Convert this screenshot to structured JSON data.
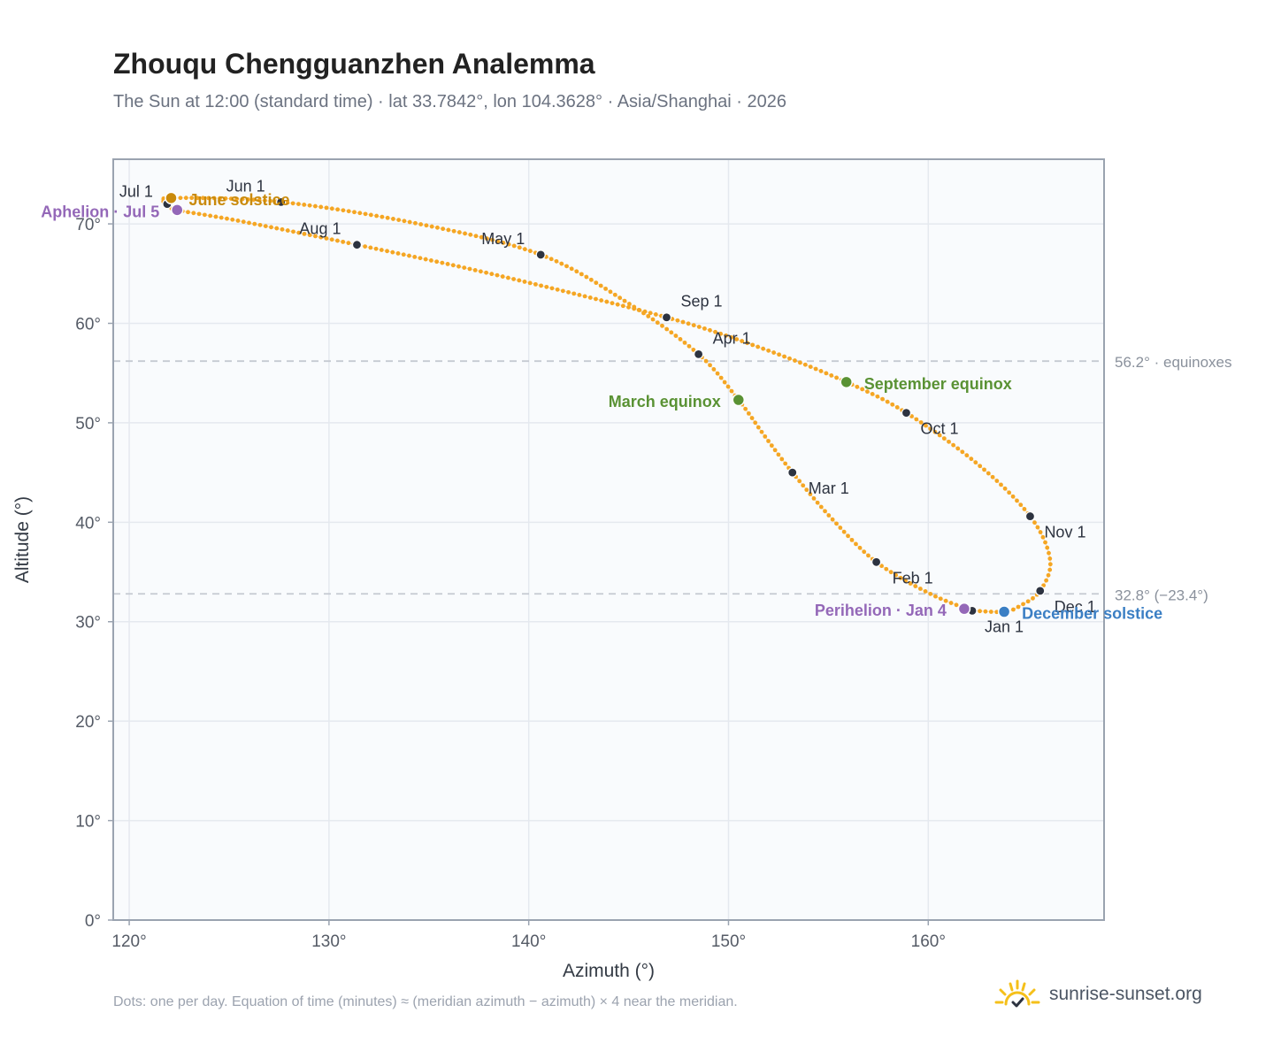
{
  "header": {
    "title": "Zhouqu Chengguanzhen Analemma",
    "subtitle": "The Sun at 12:00 (standard time) · lat 33.7842°, lon 104.3628° · Asia/Shanghai · 2026"
  },
  "footer": {
    "note": "Dots: one per day. Equation of time (minutes) ≈ (meridian azimuth − azimuth) × 4 near the meridian.",
    "brand": "sunrise-sunset.org",
    "brand_icon": "sun-check-icon"
  },
  "colors": {
    "curve": "#f5a623",
    "month_dot": "#2d3340",
    "june": "#c98a0c",
    "december": "#3b7fc4",
    "equinox": "#5a9234",
    "apsis": "#9468b8",
    "grid": "#e5e9ef",
    "plot_bg": "#f9fbfd",
    "frame": "#9aa3b0",
    "refline": "#c5cad2"
  },
  "chart_data": {
    "type": "scatter",
    "xlabel": "Azimuth (°)",
    "ylabel": "Altitude (°)",
    "xlim": [
      119.2,
      168.8
    ],
    "ylim": [
      0,
      76.5
    ],
    "xticks": [
      120,
      130,
      140,
      150,
      160
    ],
    "xtick_labels": [
      "120°",
      "130°",
      "140°",
      "150°",
      "160°"
    ],
    "yticks": [
      0,
      10,
      20,
      30,
      40,
      50,
      60,
      70
    ],
    "ytick_labels": [
      "0°",
      "10°",
      "20°",
      "30°",
      "40°",
      "50°",
      "60°",
      "70°"
    ],
    "grid": true,
    "curve_points": [
      {
        "date": "Jan 1",
        "az": 162.2,
        "alt": 31.1
      },
      {
        "date": "Jan 15",
        "az": 160.1,
        "alt": 32.8
      },
      {
        "date": "Feb 1",
        "az": 157.4,
        "alt": 36.0
      },
      {
        "date": "Feb 15",
        "az": 155.2,
        "alt": 40.3
      },
      {
        "date": "Mar 1",
        "az": 153.2,
        "alt": 45.0
      },
      {
        "date": "Mar 10",
        "az": 151.8,
        "alt": 48.7
      },
      {
        "date": "Mar 20",
        "az": 150.5,
        "alt": 52.3
      },
      {
        "date": "Apr 1",
        "az": 148.5,
        "alt": 56.9
      },
      {
        "date": "Apr 15",
        "az": 145.0,
        "alt": 62.0
      },
      {
        "date": "May 1",
        "az": 140.6,
        "alt": 66.9
      },
      {
        "date": "May 15",
        "az": 134.5,
        "alt": 70.0
      },
      {
        "date": "Jun 1",
        "az": 127.6,
        "alt": 72.2
      },
      {
        "date": "Jun 21",
        "az": 122.1,
        "alt": 72.6
      },
      {
        "date": "Jul 1",
        "az": 121.9,
        "alt": 72.0
      },
      {
        "date": "Jul 5",
        "az": 122.4,
        "alt": 71.4
      },
      {
        "date": "Jul 15",
        "az": 125.5,
        "alt": 70.3
      },
      {
        "date": "Aug 1",
        "az": 131.4,
        "alt": 67.9
      },
      {
        "date": "Aug 15",
        "az": 138.5,
        "alt": 64.8
      },
      {
        "date": "Sep 1",
        "az": 146.9,
        "alt": 60.6
      },
      {
        "date": "Sep 12",
        "az": 151.8,
        "alt": 57.4
      },
      {
        "date": "Sep 23",
        "az": 155.9,
        "alt": 54.1
      },
      {
        "date": "Oct 1",
        "az": 158.9,
        "alt": 51.0
      },
      {
        "date": "Oct 15",
        "az": 162.5,
        "alt": 45.8
      },
      {
        "date": "Nov 1",
        "az": 165.1,
        "alt": 40.6
      },
      {
        "date": "Nov 15",
        "az": 166.1,
        "alt": 36.2
      },
      {
        "date": "Dec 1",
        "az": 165.6,
        "alt": 33.1
      },
      {
        "date": "Dec 12",
        "az": 164.6,
        "alt": 31.6
      },
      {
        "date": "Dec 21",
        "az": 163.8,
        "alt": 31.0
      },
      {
        "date": "Dec 31",
        "az": 162.3,
        "alt": 31.1
      }
    ],
    "month_markers": [
      {
        "label": "Jan 1",
        "az": 162.2,
        "alt": 31.1,
        "anchor": "start",
        "dx": 14,
        "dy": 24
      },
      {
        "label": "Feb 1",
        "az": 157.4,
        "alt": 36.0,
        "anchor": "start",
        "dx": 18,
        "dy": 24
      },
      {
        "label": "Mar 1",
        "az": 153.2,
        "alt": 45.0,
        "anchor": "start",
        "dx": 18,
        "dy": 24
      },
      {
        "label": "Apr 1",
        "az": 148.5,
        "alt": 56.9,
        "anchor": "start",
        "dx": 16,
        "dy": -12
      },
      {
        "label": "May 1",
        "az": 140.6,
        "alt": 66.9,
        "anchor": "end",
        "dx": -18,
        "dy": -12
      },
      {
        "label": "Jun 1",
        "az": 127.6,
        "alt": 72.2,
        "anchor": "end",
        "dx": -18,
        "dy": -12
      },
      {
        "label": "Jul 1",
        "az": 121.9,
        "alt": 72.0,
        "anchor": "end",
        "dx": -16,
        "dy": -8
      },
      {
        "label": "Aug 1",
        "az": 131.4,
        "alt": 67.9,
        "anchor": "end",
        "dx": -18,
        "dy": -12
      },
      {
        "label": "Sep 1",
        "az": 146.9,
        "alt": 60.6,
        "anchor": "start",
        "dx": 16,
        "dy": -12
      },
      {
        "label": "Oct 1",
        "az": 158.9,
        "alt": 51.0,
        "anchor": "start",
        "dx": 16,
        "dy": 24
      },
      {
        "label": "Nov 1",
        "az": 165.1,
        "alt": 40.6,
        "anchor": "start",
        "dx": 16,
        "dy": 24
      },
      {
        "label": "Dec 1",
        "az": 165.6,
        "alt": 33.1,
        "anchor": "start",
        "dx": 16,
        "dy": 24
      }
    ],
    "events": [
      {
        "label": "June solstice",
        "az": 122.1,
        "alt": 72.6,
        "color": "#c98a0c",
        "anchor": "start",
        "dx": 20,
        "dy": 8
      },
      {
        "label": "December solstice",
        "az": 163.8,
        "alt": 31.0,
        "color": "#3b7fc4",
        "anchor": "start",
        "dx": 20,
        "dy": 8
      },
      {
        "label": "March equinox",
        "az": 150.5,
        "alt": 52.3,
        "color": "#5a9234",
        "anchor": "end",
        "dx": -20,
        "dy": 8
      },
      {
        "label": "September equinox",
        "az": 155.9,
        "alt": 54.1,
        "color": "#5a9234",
        "anchor": "start",
        "dx": 20,
        "dy": 8
      },
      {
        "label": "Aphelion · Jul 5",
        "az": 122.4,
        "alt": 71.4,
        "color": "#9468b8",
        "anchor": "end",
        "dx": -20,
        "dy": 8
      },
      {
        "label": "Perihelion · Jan 4",
        "az": 161.8,
        "alt": 31.3,
        "color": "#9468b8",
        "anchor": "end",
        "dx": -20,
        "dy": 8
      }
    ],
    "reference_lines": [
      {
        "alt": 56.2,
        "label": "56.2° · equinoxes"
      },
      {
        "alt": 32.8,
        "label": "32.8° (−23.4°)"
      }
    ]
  }
}
